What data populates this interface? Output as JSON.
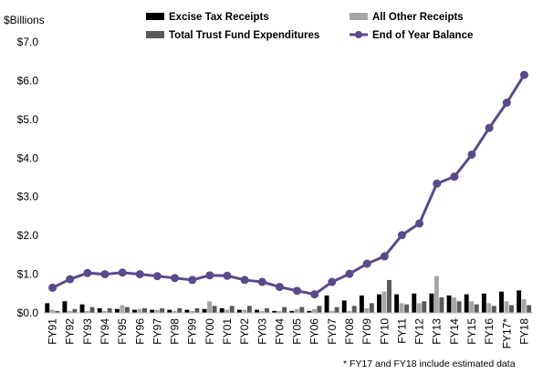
{
  "chart_data": {
    "type": "bar",
    "unit_label": "$Billions",
    "note": "* FY17 and FY18 include estimated data",
    "ylim": [
      0,
      7
    ],
    "yticks": [
      0,
      1,
      2,
      3,
      4,
      5,
      6,
      7
    ],
    "ytick_labels": [
      "$0.0",
      "$1.0",
      "$2.0",
      "$3.0",
      "$4.0",
      "$5.0",
      "$6.0",
      "$7.0"
    ],
    "grid": false,
    "legend_position": "top",
    "categories": [
      "FY91",
      "FY92",
      "FY93",
      "FY94",
      "FY95",
      "FY96",
      "FY97",
      "FY98",
      "FY99",
      "FY00",
      "FY01",
      "FY02",
      "FY03",
      "FY04",
      "FY05",
      "FY06",
      "FY07",
      "FY08",
      "FY09",
      "FY10",
      "FY11",
      "FY12",
      "FY13",
      "FY14",
      "FY15",
      "FY16",
      "FY17*",
      "FY18"
    ],
    "series": [
      {
        "name": "Excise Tax Receipts",
        "type": "bar",
        "color": "#000000",
        "values": [
          0.25,
          0.3,
          0.22,
          0.12,
          0.1,
          0.08,
          0.08,
          0.08,
          0.08,
          0.1,
          0.12,
          0.08,
          0.08,
          0.05,
          0.05,
          0.05,
          0.45,
          0.32,
          0.45,
          0.48,
          0.48,
          0.5,
          0.5,
          0.45,
          0.48,
          0.5,
          0.55,
          0.58
        ]
      },
      {
        "name": "All Other Receipts",
        "type": "bar",
        "color": "#a6a6a6",
        "values": [
          0.08,
          0.05,
          0.05,
          0.05,
          0.2,
          0.1,
          0.08,
          0.05,
          0.05,
          0.3,
          0.08,
          0.08,
          0.05,
          0.05,
          0.1,
          0.1,
          0.05,
          0.05,
          0.12,
          0.55,
          0.25,
          0.25,
          0.95,
          0.4,
          0.3,
          0.25,
          0.3,
          0.35
        ]
      },
      {
        "name": "Total Trust Fund Expenditures",
        "type": "bar",
        "color": "#595959",
        "values": [
          0.05,
          0.1,
          0.15,
          0.12,
          0.15,
          0.12,
          0.12,
          0.12,
          0.12,
          0.18,
          0.18,
          0.18,
          0.12,
          0.15,
          0.15,
          0.18,
          0.15,
          0.18,
          0.25,
          0.85,
          0.22,
          0.3,
          0.4,
          0.3,
          0.22,
          0.18,
          0.2,
          0.2
        ]
      },
      {
        "name": "End of Year Balance",
        "type": "line",
        "color": "#5b4a8b",
        "values": [
          0.65,
          0.87,
          1.03,
          1.0,
          1.04,
          1.0,
          0.95,
          0.9,
          0.85,
          0.97,
          0.96,
          0.85,
          0.8,
          0.67,
          0.57,
          0.48,
          0.8,
          1.01,
          1.27,
          1.46,
          2.01,
          2.31,
          3.34,
          3.52,
          4.09,
          4.78,
          5.43,
          6.15
        ]
      }
    ]
  }
}
